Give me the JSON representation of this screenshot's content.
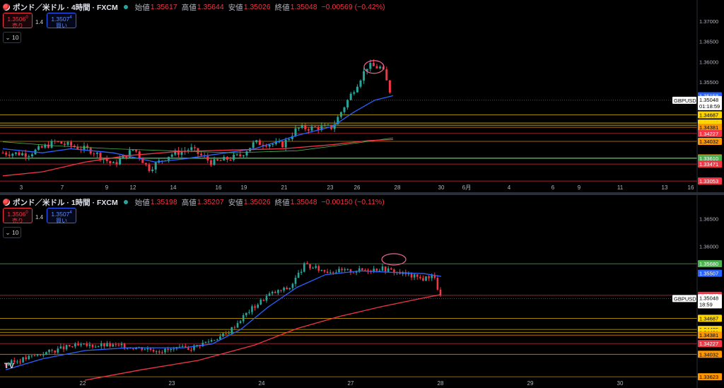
{
  "top": {
    "symbol": "ポンド／米ドル · 4時間 · FXCM",
    "ohlc": {
      "o_label": "始値",
      "o": "1.35617",
      "h_label": "高値",
      "h": "1.35644",
      "l_label": "安値",
      "l": "1.35026",
      "c_label": "終値",
      "c": "1.35048",
      "chg": "−0.00569 (−0.42%)"
    },
    "sell": {
      "price": "1.3506",
      "sup": "0",
      "label": "売り"
    },
    "buy": {
      "price": "1.3507",
      "sup": "4",
      "label": "買い"
    },
    "spread": "1.4",
    "indicator": "10",
    "price_axis": [
      "1.37000",
      "1.36500",
      "1.36000",
      "1.35500"
    ],
    "price_axis_values": [
      1.37,
      1.365,
      1.36,
      1.355
    ],
    "y_range": [
      1.3295,
      1.3728
    ],
    "symbol_tag": "GBPUSD",
    "current": {
      "price": "1.35048",
      "countdown": "01:18:59",
      "value": 1.35048
    },
    "tags": [
      {
        "text": "1.35158",
        "value": 1.35158,
        "color": "#2962ff",
        "text_color": "#ffffff"
      },
      {
        "text": "1.34687",
        "value": 1.34687,
        "color": "#ffd600",
        "text_color": "#000000"
      },
      {
        "text": "1.34485",
        "value": 1.34485,
        "color": "#ffd600",
        "text_color": "#000000"
      },
      {
        "text": "1.34431",
        "value": 1.34431,
        "color": "#ffd600",
        "text_color": "#000000"
      },
      {
        "text": "1.34381",
        "value": 1.34381,
        "color": "#ff9800",
        "text_color": "#000000"
      },
      {
        "text": "1.34227",
        "value": 1.34227,
        "color": "#f23645",
        "text_color": "#ffffff"
      },
      {
        "text": "1.34032",
        "value": 1.34032,
        "color": "#ff9800",
        "text_color": "#000000"
      },
      {
        "text": "1.33623",
        "value": 1.33623,
        "color": "#ff9800",
        "text_color": "#000000"
      },
      {
        "text": "1.33610",
        "value": 1.3361,
        "color": "#4caf50",
        "text_color": "#ffffff"
      },
      {
        "text": "1.33471",
        "value": 1.33471,
        "color": "#f23645",
        "text_color": "#ffffff"
      },
      {
        "text": "1.33053",
        "value": 1.33053,
        "color": "#f23645",
        "text_color": "#ffffff"
      }
    ],
    "x_labels": [
      "3",
      "7",
      "9",
      "12",
      "14",
      "16",
      "19",
      "21",
      "23",
      "26",
      "28",
      "30",
      "6月",
      "4",
      "6",
      "9",
      "11",
      "13",
      "16"
    ]
  },
  "bottom": {
    "symbol": "ポンド／米ドル · 1時間 · FXCM",
    "ohlc": {
      "o_label": "始値",
      "o": "1.35198",
      "h_label": "高値",
      "h": "1.35207",
      "l_label": "安値",
      "l": "1.35026",
      "c_label": "終値",
      "c": "1.35048",
      "chg": "−0.00150 (−0.11%)"
    },
    "sell": {
      "price": "1.3506",
      "sup": "0",
      "label": "売り"
    },
    "buy": {
      "price": "1.3507",
      "sup": "4",
      "label": "買い"
    },
    "spread": "1.4",
    "indicator": "10",
    "price_axis": [
      "1.36500",
      "1.36000"
    ],
    "price_axis_values": [
      1.365,
      1.36
    ],
    "y_range": [
      1.3356,
      1.3675
    ],
    "symbol_tag": "GBPUSD",
    "current": {
      "price": "1.35048",
      "countdown": "18:59",
      "value": 1.35048
    },
    "tags": [
      {
        "text": "1.35680",
        "value": 1.3568,
        "color": "#4caf50",
        "text_color": "#ffffff"
      },
      {
        "text": "1.35507",
        "value": 1.35507,
        "color": "#2962ff",
        "text_color": "#ffffff"
      },
      {
        "text": "1.35105",
        "value": 1.35105,
        "color": "#f23645",
        "text_color": "#ffffff"
      },
      {
        "text": "1.34687",
        "value": 1.34687,
        "color": "#ffd600",
        "text_color": "#000000"
      },
      {
        "text": "1.34485",
        "value": 1.34485,
        "color": "#ffd600",
        "text_color": "#000000"
      },
      {
        "text": "1.34431",
        "value": 1.34431,
        "color": "#ffd600",
        "text_color": "#000000"
      },
      {
        "text": "1.34381",
        "value": 1.34381,
        "color": "#ff9800",
        "text_color": "#000000"
      },
      {
        "text": "1.34227",
        "value": 1.34227,
        "color": "#f23645",
        "text_color": "#ffffff"
      },
      {
        "text": "1.34032",
        "value": 1.34032,
        "color": "#ff9800",
        "text_color": "#000000"
      },
      {
        "text": "1.33623",
        "value": 1.33623,
        "color": "#ff9800",
        "text_color": "#000000"
      }
    ],
    "x_labels": [
      "22",
      "23",
      "24",
      "27",
      "28",
      "29",
      "30"
    ],
    "watermark": "TV"
  },
  "colors": {
    "up": "#26a69a",
    "down": "#f23645",
    "ma_fast": "#2962ff",
    "ma_slow": "#f23645",
    "ma_mid": "#4caf50",
    "level": "#ff9800",
    "level_yellow": "#ffd600"
  }
}
